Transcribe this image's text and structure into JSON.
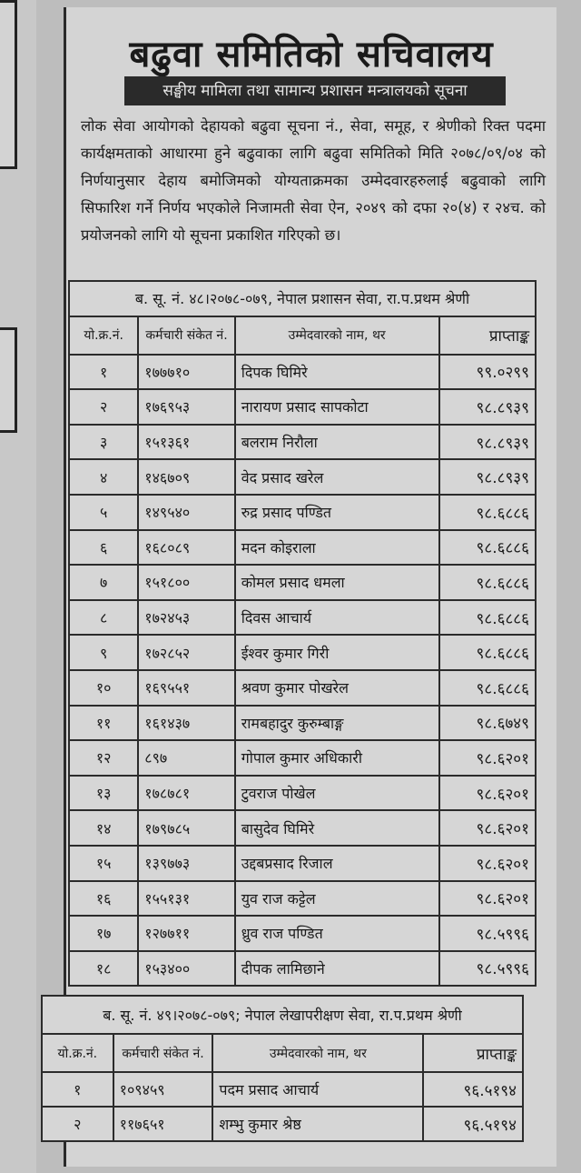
{
  "header": {
    "title": "बढुवा समितिको सचिवालय",
    "subtitle": "सङ्घीय मामिला तथा सामान्य प्रशासन मन्त्रालयको सूचना",
    "body": "लोक सेवा आयोगको देहायको बढुवा सूचना नं., सेवा, समूह, र श्रेणीको रिक्त पदमा कार्यक्षमताको आधारमा हुने बढुवाका लागि बढुवा समितिको मिति २०७८/०९/०४ को निर्णयानुसार देहाय बमोजिमको योग्यताक्रमका उम्मेदवारहरुलाई बढुवाको लागि सिफारिश गर्ने निर्णय भएकोले निजामती सेवा ऐन, २०४९ को दफा २०(४) र २४च. को प्रयोजनको लागि यो सूचना प्रकाशित गरिएको छ।"
  },
  "columns": [
    "यो.क्र.नं.",
    "कर्मचारी संकेत नं.",
    "उम्मेदवारको नाम, थर",
    "प्राप्ताङ्क"
  ],
  "tables": [
    {
      "caption": "ब. सू. नं. ४८।२०७८-०७९, नेपाल प्रशासन सेवा, रा.प.प्रथम श्रेणी",
      "rows": [
        [
          "१",
          "१७७७१०",
          "दिपक घिमिरे",
          "९९.०२९९"
        ],
        [
          "२",
          "१७६९५३",
          "नारायण प्रसाद सापकोटा",
          "९८.८९३९"
        ],
        [
          "३",
          "१५१३६१",
          "बलराम निरौला",
          "९८.८९३९"
        ],
        [
          "४",
          "१४६७०९",
          "वेद प्रसाद खरेल",
          "९८.८९३९"
        ],
        [
          "५",
          "१४९५४०",
          "रुद्र प्रसाद पण्डित",
          "९८.६८८६"
        ],
        [
          "६",
          "१६८०८९",
          "मदन कोइराला",
          "९८.६८८६"
        ],
        [
          "७",
          "१५१८००",
          "कोमल प्रसाद धमला",
          "९८.६८८६"
        ],
        [
          "८",
          "१७२४५३",
          "दिवस आचार्य",
          "९८.६८८६"
        ],
        [
          "९",
          "१७२८५२",
          "ईश्वर कुमार गिरी",
          "९८.६८८६"
        ],
        [
          "१०",
          "१६९५५१",
          "श्रवण कुमार पोखरेल",
          "९८.६८८६"
        ],
        [
          "११",
          "१६१४३७",
          "रामबहादुर कुरुम्बाङ्ग",
          "९८.६७४९"
        ],
        [
          "१२",
          "८९७",
          "गोपाल कुमार अधिकारी",
          "९८.६२०१"
        ],
        [
          "१३",
          "१७८७८१",
          "टुवराज पोखेल",
          "९८.६२०१"
        ],
        [
          "१४",
          "१७९७८५",
          "बासुदेव घिमिरे",
          "९८.६२०१"
        ],
        [
          "१५",
          "१३९७७३",
          "उद्दबप्रसाद रिजाल",
          "९८.६२०१"
        ],
        [
          "१६",
          "१५५१३१",
          "युव राज कट्टेल",
          "९८.६२०१"
        ],
        [
          "१७",
          "१२७७११",
          "ध्रुव राज पण्डित",
          "९८.५९९६"
        ],
        [
          "१८",
          "१५३४००",
          "दीपक लामिछाने",
          "९८.५९९६"
        ]
      ]
    },
    {
      "caption": "ब. सू. नं. ४९।२०७८-०७९; नेपाल लेखापरीक्षण सेवा, रा.प.प्रथम श्रेणी",
      "rows": [
        [
          "१",
          "१०९४५९",
          "पदम प्रसाद आचार्य",
          "९६.५१९४"
        ],
        [
          "२",
          "११७६५१",
          "शम्भु कुमार श्रेष्ठ",
          "९६.५१९४"
        ]
      ]
    }
  ]
}
